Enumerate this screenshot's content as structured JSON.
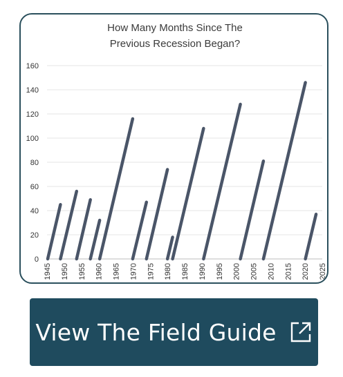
{
  "chart_data": {
    "type": "line",
    "title": "How Many Months Since The Previous Recession Began?",
    "title_lines": [
      "How Many Months Since The",
      "Previous Recession Began?"
    ],
    "xlabel": "",
    "ylabel": "",
    "xlim": [
      1945,
      2025
    ],
    "ylim": [
      0,
      160
    ],
    "x_ticks": [
      "1945",
      "1950",
      "1955",
      "1960",
      "1965",
      "1970",
      "1975",
      "1980",
      "1985",
      "1990",
      "1995",
      "2000",
      "2005",
      "2010",
      "2015",
      "2020",
      "2025"
    ],
    "y_ticks": [
      "0",
      "20",
      "40",
      "60",
      "80",
      "100",
      "120",
      "140",
      "160"
    ],
    "grid": true,
    "series_color": "#4a5568",
    "segments": [
      {
        "x": [
          1945.2,
          1948.9
        ],
        "y": [
          0,
          45
        ]
      },
      {
        "x": [
          1948.9,
          1953.6
        ],
        "y": [
          0,
          56
        ]
      },
      {
        "x": [
          1953.6,
          1957.6
        ],
        "y": [
          0,
          49
        ]
      },
      {
        "x": [
          1957.6,
          1960.3
        ],
        "y": [
          0,
          32
        ]
      },
      {
        "x": [
          1960.3,
          1969.9
        ],
        "y": [
          0,
          116
        ]
      },
      {
        "x": [
          1969.9,
          1973.9
        ],
        "y": [
          0,
          47
        ]
      },
      {
        "x": [
          1973.9,
          1980.0
        ],
        "y": [
          0,
          74
        ]
      },
      {
        "x": [
          1980.0,
          1981.5
        ],
        "y": [
          0,
          18
        ]
      },
      {
        "x": [
          1981.5,
          1990.5
        ],
        "y": [
          0,
          108
        ]
      },
      {
        "x": [
          1990.5,
          2001.2
        ],
        "y": [
          0,
          128
        ]
      },
      {
        "x": [
          2001.2,
          2007.9
        ],
        "y": [
          0,
          81
        ]
      },
      {
        "x": [
          2007.9,
          2020.1
        ],
        "y": [
          0,
          146
        ]
      },
      {
        "x": [
          2020.1,
          2023.2
        ],
        "y": [
          0,
          37
        ]
      }
    ]
  },
  "cta": {
    "label": "View The Field Guide",
    "icon": "external-link-icon",
    "background": "#1f4b5e"
  }
}
